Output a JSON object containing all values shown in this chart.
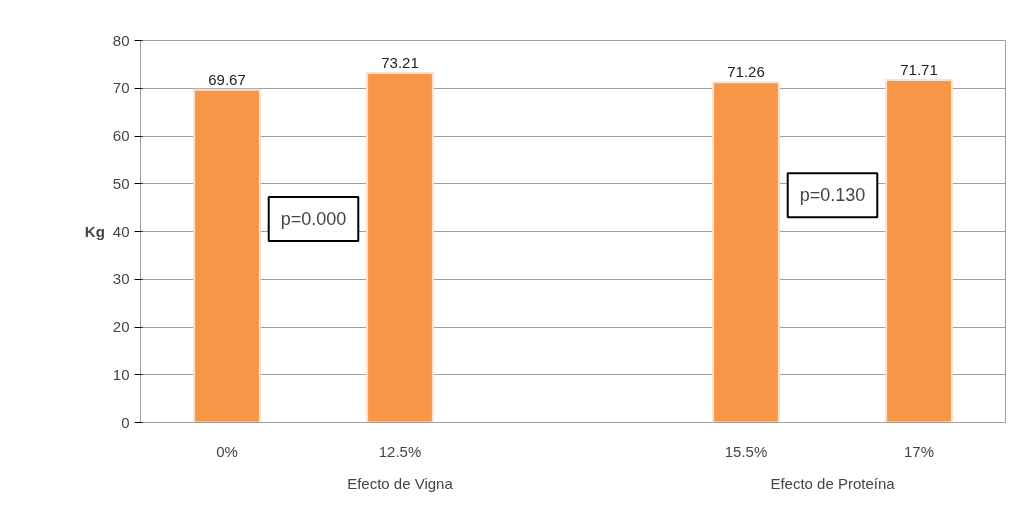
{
  "chart_data": {
    "type": "bar",
    "ylabel": "Kg",
    "categories": [
      "0%",
      "12.5%",
      null,
      "15.5%",
      "17%"
    ],
    "values": [
      69.67,
      73.21,
      null,
      71.26,
      71.71
    ],
    "color": "#f79646",
    "ylim": [
      0,
      80
    ],
    "yticks": [
      0,
      10,
      20,
      30,
      40,
      50,
      60,
      70,
      80
    ],
    "grid": "y",
    "data_labels": true,
    "annotations": [
      "p=0.000",
      "p=0.130",
      "Efecto de Vigna",
      "Efecto de Proteína"
    ]
  }
}
